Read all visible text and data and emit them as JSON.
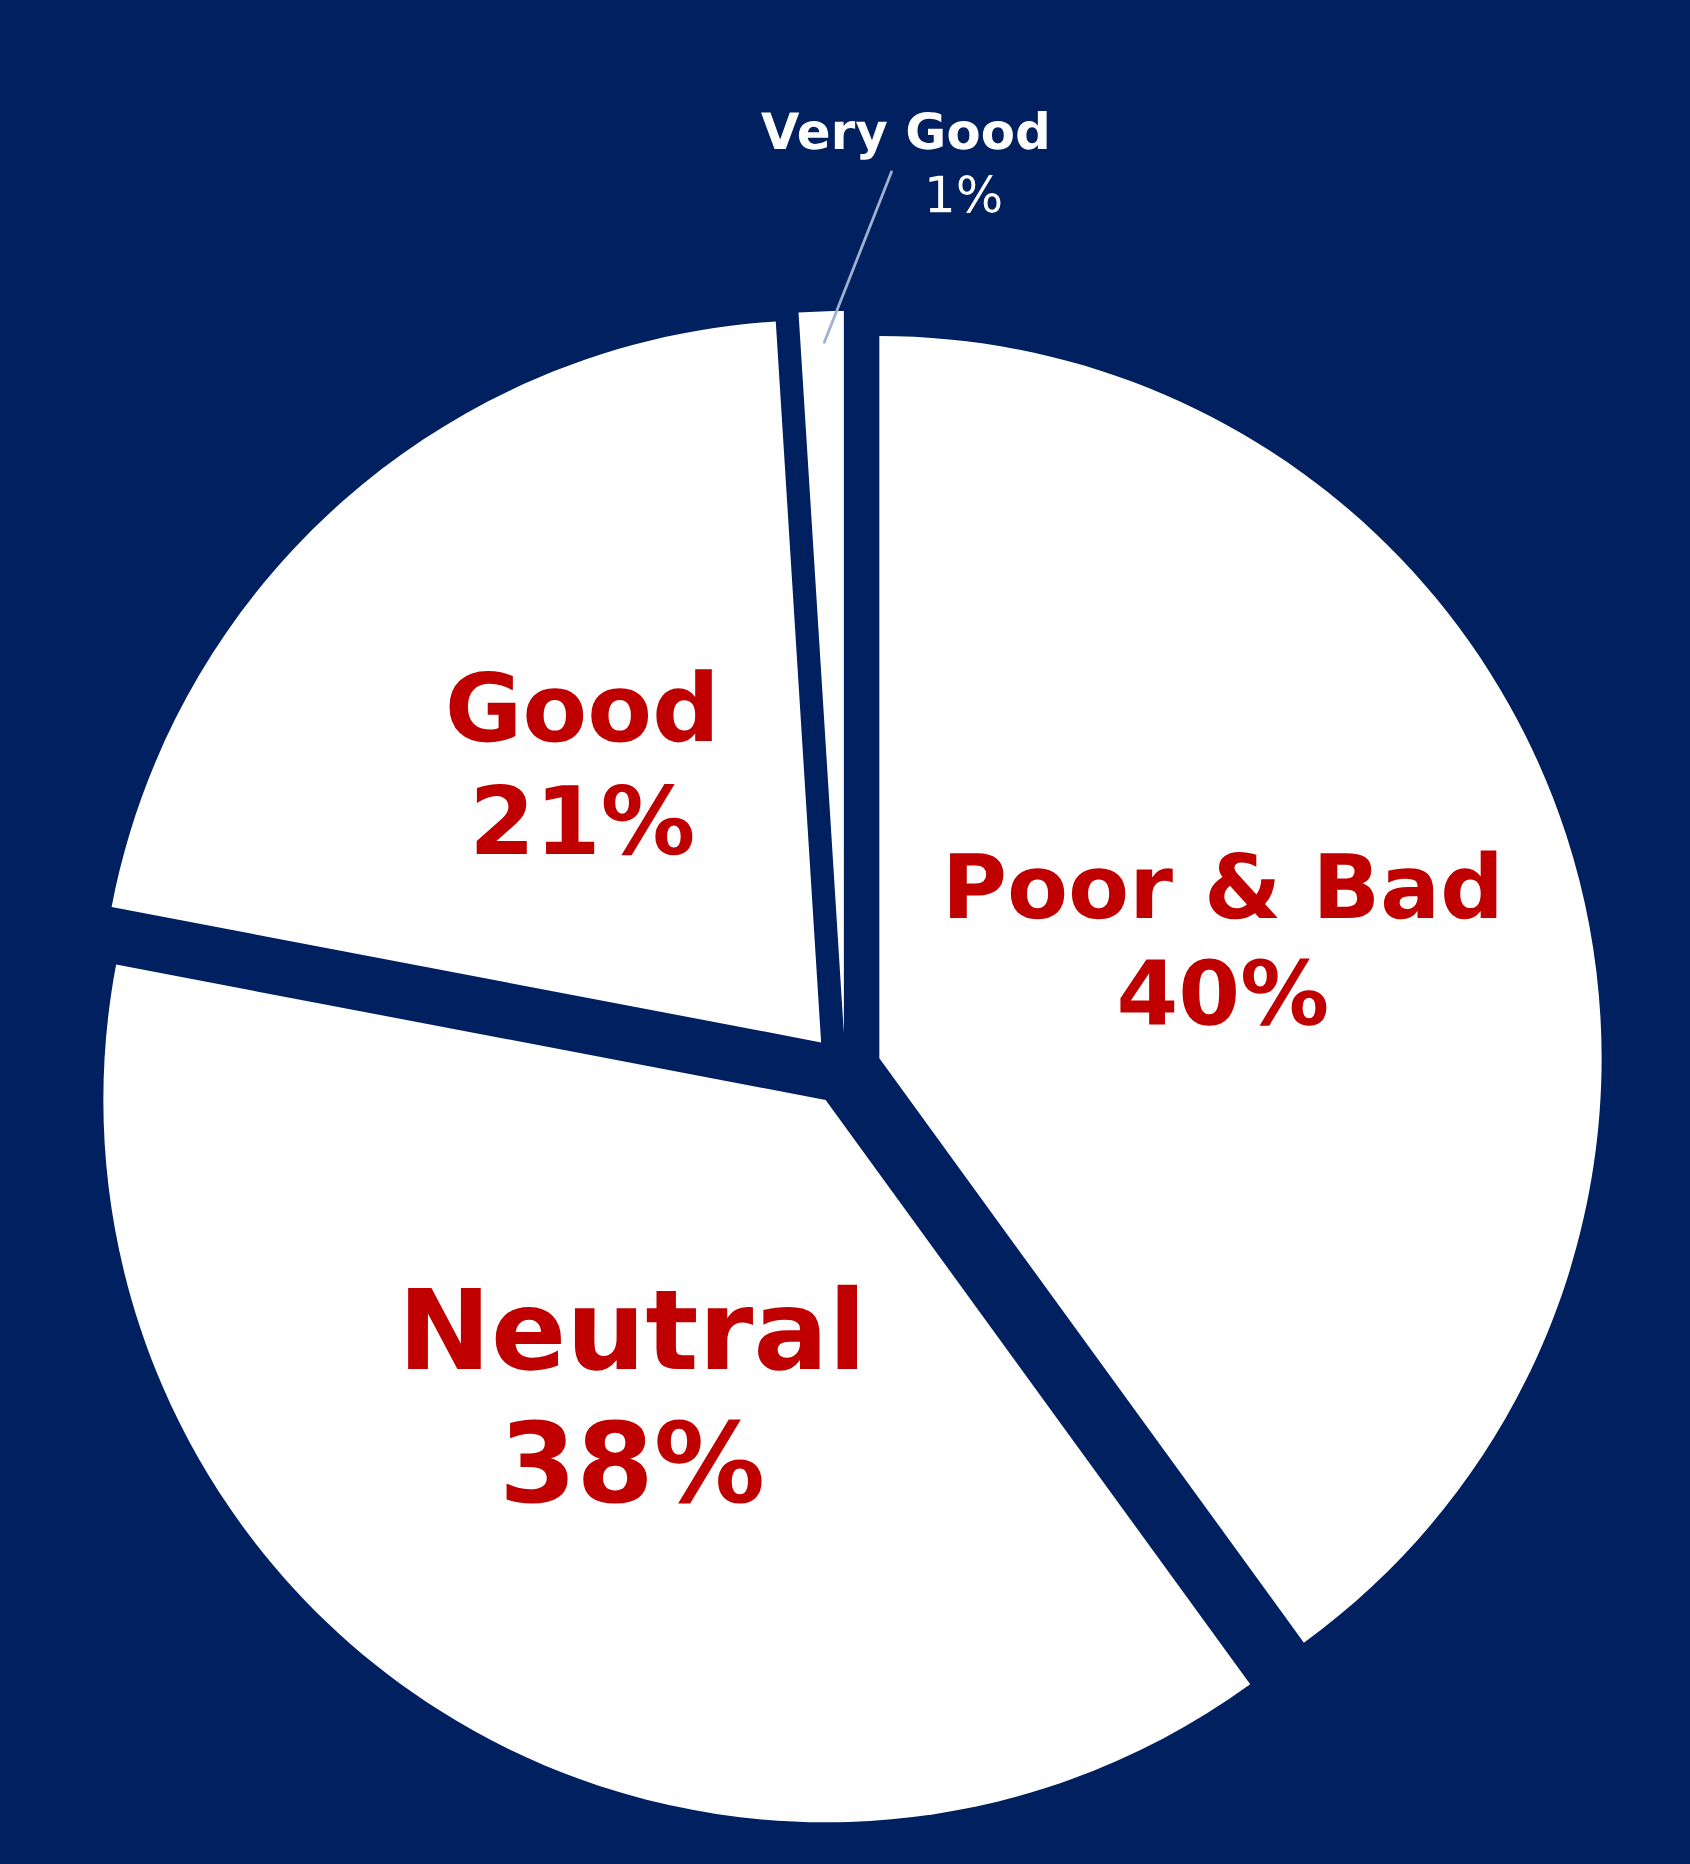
{
  "chart_data": {
    "type": "pie",
    "categories": [
      "Poor & Bad",
      "Neutral",
      "Good",
      "Very Good"
    ],
    "values": [
      40,
      38,
      21,
      1
    ],
    "value_labels": [
      "40%",
      "38%",
      "21%",
      "1%"
    ],
    "colors": [
      "#ffffff",
      "#ffffff",
      "#ffffff",
      "#ffffff"
    ],
    "legend": false
  }
}
